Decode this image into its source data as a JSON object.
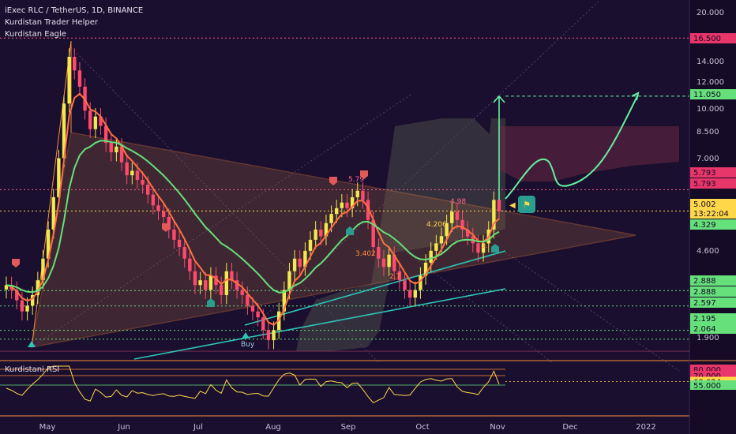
{
  "legend": {
    "symbol": "iExec RLC / TetherUS, 1D, BINANCE",
    "indicator1": "Kurdistan Trader Helper",
    "indicator2": "Kurdistan Eagle"
  },
  "rsi": {
    "name": "Kurdistani RSI",
    "axis_labels": [
      "80.000",
      "70.000",
      "60.624",
      "55.000"
    ],
    "last_value": 60.624
  },
  "colors": {
    "background": "#1a0f2e",
    "up_candle": "#f2e94e",
    "down_candle": "#ff4a6e",
    "triangle_fill": "#8a5a3c",
    "triangle_stroke": "#ff8c3a",
    "ema_fast": "#ff7043",
    "ema_slow": "#66e07a",
    "trendline": "#2ec4b6",
    "cloud": "#4a4a4a",
    "target": "#66f0a0",
    "price_line": "#ffd84a",
    "resistance": "#ff5c8a",
    "support": "#66e07a"
  },
  "chart_data": {
    "type": "candlestick",
    "x_labels": [
      "May",
      "Jun",
      "Jul",
      "Aug",
      "Sep",
      "Oct",
      "Nov",
      "Dec",
      "2022"
    ],
    "y_tick_labels": [
      "20.000",
      "14.000",
      "12.000",
      "10.000",
      "8.500",
      "7.000",
      "5.000",
      "4.600",
      "1.900"
    ],
    "price_labels": [
      {
        "value": 16.5,
        "text": "16.500",
        "kind": "resistance"
      },
      {
        "value": 11.05,
        "text": "11.050",
        "kind": "target"
      },
      {
        "value": 5.793,
        "text": "5.793",
        "kind": "resistance"
      },
      {
        "value": 5.793,
        "text": "5.793",
        "kind": "resistance"
      },
      {
        "value": 5.002,
        "text": "5.002",
        "kind": "current"
      },
      {
        "value": 5.002,
        "text": "13:22:04",
        "kind": "countdown"
      },
      {
        "value": 4.329,
        "text": "4.329",
        "kind": "ema"
      },
      {
        "value": 2.888,
        "text": "2.888",
        "kind": "support"
      },
      {
        "value": 2.888,
        "text": "2.888",
        "kind": "support"
      },
      {
        "value": 2.597,
        "text": "2.597",
        "kind": "support"
      },
      {
        "value": 2.195,
        "text": "2.195",
        "kind": "support"
      },
      {
        "value": 2.064,
        "text": "2.064",
        "kind": "support"
      }
    ],
    "annotations": [
      "5.79",
      "4.98",
      "4.206",
      "3.402",
      "2.7",
      "3.",
      "Buy"
    ],
    "close_prices": [
      3.0,
      2.9,
      2.7,
      2.5,
      2.6,
      2.8,
      3.1,
      3.6,
      4.4,
      5.5,
      7.2,
      10.5,
      14.5,
      13.2,
      11.8,
      10.0,
      8.8,
      9.6,
      9.0,
      8.0,
      7.5,
      7.8,
      7.0,
      6.4,
      6.6,
      6.2,
      6.0,
      5.6,
      5.2,
      5.0,
      4.8,
      4.4,
      4.1,
      3.9,
      3.6,
      3.3,
      3.0,
      3.1,
      2.9,
      3.2,
      3.0,
      2.8,
      3.3,
      3.1,
      2.9,
      2.8,
      2.6,
      2.5,
      2.4,
      2.2,
      2.05,
      2.2,
      2.5,
      2.9,
      3.3,
      3.6,
      3.4,
      3.8,
      4.1,
      4.4,
      4.2,
      4.6,
      4.9,
      5.1,
      5.3,
      5.1,
      5.5,
      5.75,
      5.4,
      4.7,
      3.9,
      3.6,
      3.4,
      3.7,
      3.3,
      3.1,
      2.9,
      2.75,
      2.9,
      3.2,
      3.5,
      3.8,
      4.0,
      4.206,
      4.6,
      4.98,
      4.7,
      4.4,
      4.2,
      4.0,
      3.75,
      4.0,
      4.4,
      5.4,
      5.0
    ],
    "ylim": [
      1.8,
      21
    ],
    "scale": "log"
  }
}
